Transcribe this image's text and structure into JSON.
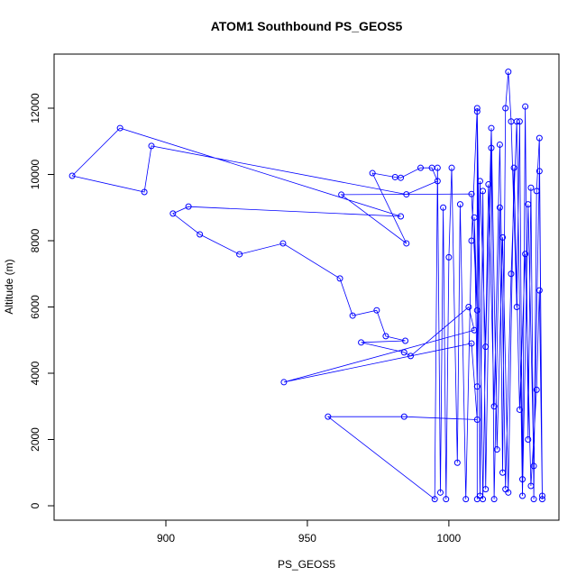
{
  "chart_data": {
    "type": "line",
    "title": "ATOM1 Southbound PS_GEOS5",
    "x_label": "PS_GEOS5",
    "y_label": "Altitude (m)",
    "xlim": [
      860.5,
      1038.9
    ],
    "ylim": [
      -435,
      13633
    ],
    "xticks": [
      900,
      950,
      1000
    ],
    "yticks": [
      0,
      2000,
      4000,
      6000,
      8000,
      10000,
      12000
    ],
    "color": "#0000ff",
    "x": [
      1010,
      1010,
      1011,
      1012,
      1013,
      1015,
      1016,
      1018,
      1019,
      1020,
      1021,
      1022,
      1024,
      1025,
      1026,
      1027,
      1028,
      1029,
      1030,
      1031,
      1032,
      1033,
      1032,
      1031,
      1029,
      1027,
      1025,
      1023,
      1021,
      1019,
      1017,
      1015,
      1013,
      1011,
      1010,
      1009,
      1010,
      1008,
      962,
      985,
      973,
      981,
      983,
      990,
      994,
      996,
      985,
      894.9,
      892.4,
      866.9,
      883.8,
      983,
      908,
      902.5,
      912,
      926,
      941.4,
      961.5,
      966,
      974.5,
      977.7,
      984.6,
      969,
      984.2,
      986.5,
      1007,
      1009,
      941.7,
      1008,
      1010,
      984.2,
      957.3,
      995,
      996,
      997,
      998,
      999,
      1000,
      1001,
      1003,
      1004,
      1006,
      1008,
      1010,
      1012,
      1014,
      1016,
      1018,
      1020,
      1022,
      1024,
      1026,
      1028,
      1030,
      1032,
      1033
    ],
    "y": [
      200,
      11900,
      300,
      9500,
      500,
      10800,
      200,
      9000,
      1000,
      12000,
      13100,
      11600,
      6000,
      11600,
      800,
      12050,
      2000,
      9600,
      200,
      9500,
      11100,
      200,
      6500,
      3500,
      600,
      7600,
      2900,
      10200,
      400,
      8100,
      1700,
      11400,
      4800,
      9800,
      3600,
      8700,
      5900,
      9410,
      9390,
      7920,
      10040,
      9920,
      9900,
      10200,
      10200,
      9800,
      9400,
      10860,
      9470,
      9960,
      11400,
      8735,
      9030,
      8820,
      8190,
      7590,
      7920,
      6860,
      5740,
      5900,
      5120,
      4980,
      4930,
      4630,
      4520,
      6000,
      5300,
      3730,
      4900,
      2600,
      2690,
      2690,
      200,
      10200,
      400,
      9000,
      200,
      7500,
      10200,
      1300,
      9100,
      200,
      8000,
      12000,
      200,
      9700,
      3000,
      10900,
      500,
      7000,
      11600,
      300,
      9100,
      1200,
      10100,
      300
    ]
  }
}
